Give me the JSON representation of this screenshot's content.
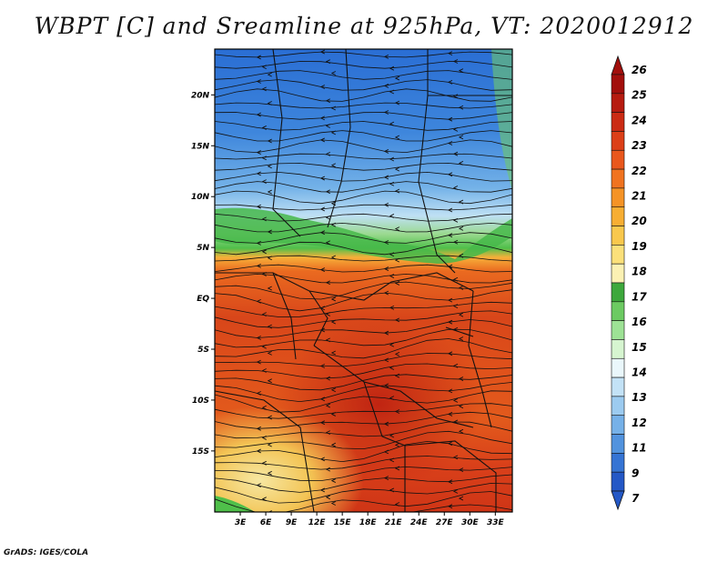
{
  "title": "WBPT [C] and Sreamline at 925hPa, VT: 2020012912",
  "footer": "GrADS: IGES/COLA",
  "map": {
    "lat_labels": [
      "20N",
      "15N",
      "10N",
      "5N",
      "EQ",
      "5S",
      "10S",
      "15S"
    ],
    "lon_labels": [
      "3E",
      "6E",
      "9E",
      "12E",
      "15E",
      "18E",
      "21E",
      "24E",
      "27E",
      "30E",
      "33E"
    ],
    "lat_range": [
      -21,
      24.5
    ],
    "lon_range": [
      0,
      35
    ]
  },
  "colorbar": {
    "labels": [
      "26",
      "25",
      "24",
      "23",
      "22",
      "21",
      "20",
      "19",
      "18",
      "17",
      "16",
      "15",
      "14",
      "13",
      "12",
      "11",
      "9",
      "7"
    ],
    "colors": [
      "#e8c35a",
      "#f3d37a",
      "#f7e08f",
      "#f4d766",
      "#f2c94f",
      "#efb83b",
      "#ec9e2a",
      "#e98320",
      "#e56a1c",
      "#df5419",
      "#d63e16",
      "#c72a12",
      "#b21c0f",
      "#9c120c",
      "#3fb84a",
      "#6dd06a",
      "#a0e29a",
      "#d2f3cc",
      "#e9f8ea",
      "#cbe6f7",
      "#a8d3f2",
      "#83bcec",
      "#5f9fe2",
      "#3e7fd8",
      "#2a62c8"
    ],
    "bins": [
      "#a20f0c",
      "#b61b10",
      "#cb2b14",
      "#dc3f18",
      "#e9571c",
      "#f07320",
      "#f59326",
      "#f7ae33",
      "#f9c84d",
      "#fbe07a",
      "#fbf1b3",
      "#3da83c",
      "#6cca62",
      "#9de295",
      "#d6f5d0",
      "#eaf7fb",
      "#c3e2f6",
      "#9ccbf0",
      "#76b1e8",
      "#5293de",
      "#3574d4",
      "#2458c6"
    ]
  }
}
